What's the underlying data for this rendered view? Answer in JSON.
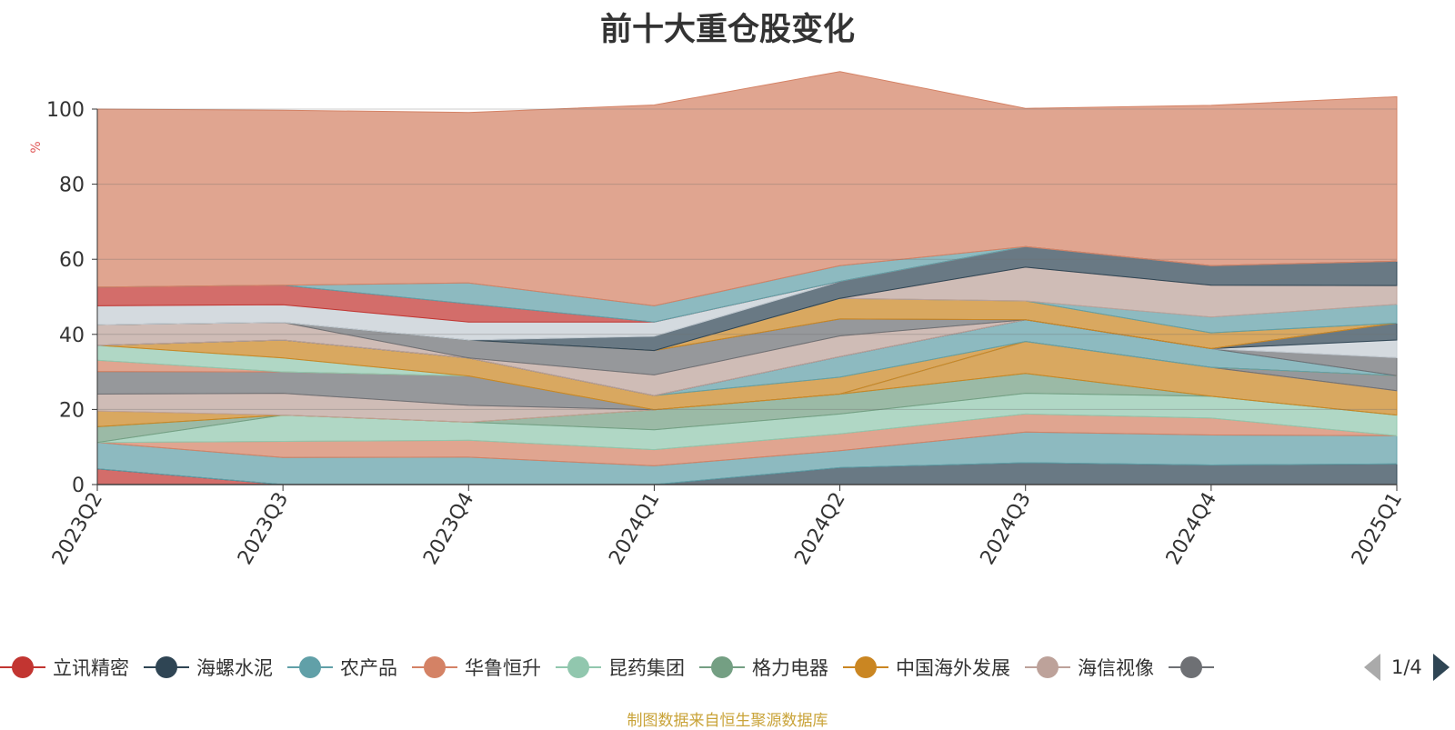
{
  "chart_data": {
    "type": "area",
    "stacked": true,
    "title": "前十大重仓股变化",
    "ylabel": "%",
    "ylim": [
      0,
      100
    ],
    "yticks": [
      0,
      20,
      40,
      60,
      80,
      100
    ],
    "grid": true,
    "legend_position": "bottom",
    "categories": [
      "2023Q2",
      "2023Q3",
      "2023Q4",
      "2024Q1",
      "2024Q2",
      "2024Q3",
      "2024Q4",
      "2025Q1"
    ],
    "series": [
      {
        "name": "立讯精密",
        "color": "#c23531",
        "values": [
          4.2,
          0,
          0,
          0,
          0,
          0,
          0,
          0
        ]
      },
      {
        "name": "海螺水泥",
        "color": "#2f4554",
        "values": [
          0,
          0,
          0,
          0,
          4.5,
          5.8,
          5.2,
          5.5
        ]
      },
      {
        "name": "农产品",
        "color": "#61a0a8",
        "values": [
          7.0,
          7.2,
          7.3,
          5.0,
          4.5,
          8.2,
          8.0,
          7.5
        ]
      },
      {
        "name": "华鲁恒升",
        "color": "#d48265",
        "values": [
          0,
          4.3,
          4.5,
          4.3,
          4.5,
          4.8,
          4.5,
          0
        ]
      },
      {
        "name": "昆药集团",
        "color": "#91c7ae",
        "values": [
          0,
          7.0,
          4.8,
          5.3,
          5.3,
          5.5,
          5.8,
          5.5
        ]
      },
      {
        "name": "格力电器",
        "color": "#749f83",
        "values": [
          4.2,
          0,
          0,
          5.3,
          5.3,
          5.3,
          0,
          0
        ]
      },
      {
        "name": "中国海外发展",
        "color": "#ca8622",
        "values": [
          4.2,
          0,
          0,
          0,
          0,
          8.5,
          7.7,
          6.5
        ]
      },
      {
        "name": "海信视像",
        "color": "#bda29a",
        "values": [
          4.5,
          5.8,
          4.5,
          0,
          0,
          0,
          0,
          0
        ]
      },
      {
        "name": "",
        "color": "#6e7074",
        "values": [
          6.0,
          5.7,
          7.8,
          0,
          0,
          0,
          0,
          4.0
        ]
      },
      {
        "name": "",
        "color": "#d48265",
        "values": [
          3.0,
          0,
          0,
          0,
          0,
          0,
          0,
          0
        ]
      },
      {
        "name": "",
        "color": "#91c7ae",
        "values": [
          4.0,
          3.7,
          0,
          0,
          0,
          0,
          0,
          0
        ]
      },
      {
        "name": "",
        "color": "#ca8622",
        "values": [
          0,
          4.8,
          4.8,
          3.8,
          4.5,
          0,
          0,
          0
        ]
      },
      {
        "name": "",
        "color": "#61a0a8",
        "values": [
          0,
          0,
          0,
          0,
          5.5,
          5.8,
          5.0,
          0
        ]
      },
      {
        "name": "",
        "color": "#6e7074",
        "values": [
          0,
          0,
          0,
          0,
          0,
          0,
          0,
          4.8
        ]
      },
      {
        "name": "",
        "color": "#c4ccd3",
        "values": [
          0,
          0,
          0,
          0,
          0,
          0,
          0,
          4.7
        ]
      },
      {
        "name": "",
        "color": "#2f4554",
        "values": [
          0,
          0,
          0,
          0,
          0,
          0,
          0,
          4.5
        ]
      },
      {
        "name": "",
        "color": "#bda29a",
        "values": [
          5.5,
          4.7,
          0,
          5.5,
          5.5,
          0,
          0,
          0
        ]
      },
      {
        "name": "",
        "color": "#6e7074",
        "values": [
          0,
          0,
          4.8,
          6.5,
          4.5,
          0,
          0,
          0
        ]
      },
      {
        "name": "",
        "color": "#ca8622",
        "values": [
          0,
          0,
          0,
          0,
          5.5,
          5.0,
          4.2,
          0
        ]
      },
      {
        "name": "",
        "color": "#61a0a8",
        "values": [
          0,
          0,
          0,
          0,
          0,
          0,
          4.2,
          5.0
        ]
      },
      {
        "name": "",
        "color": "#bda29a",
        "values": [
          0,
          0,
          0,
          0,
          0,
          9.0,
          8.5,
          5.0
        ]
      },
      {
        "name": "",
        "color": "#2f4554",
        "values": [
          0,
          0,
          0,
          3.8,
          4.5,
          5.5,
          5.2,
          6.5
        ]
      },
      {
        "name": "",
        "color": "#c4ccd3",
        "values": [
          5.0,
          4.7,
          4.8,
          3.8,
          0,
          0,
          0,
          0
        ]
      },
      {
        "name": "",
        "color": "#c23531",
        "values": [
          5.0,
          5.2,
          4.8,
          0,
          0,
          0,
          0,
          0
        ]
      },
      {
        "name": "",
        "color": "#61a0a8",
        "values": [
          0,
          0,
          5.6,
          4.3,
          4.2,
          0,
          0,
          0
        ]
      },
      {
        "name": "",
        "color": "#d48265",
        "values": [
          47.4,
          46.6,
          45.4,
          53.5,
          51.7,
          36.8,
          42.7,
          43.8
        ]
      }
    ]
  },
  "legend": {
    "items": [
      "立讯精密",
      "海螺水泥",
      "农产品",
      "华鲁恒升",
      "昆药集团",
      "格力电器",
      "中国海外发展",
      "海信视像",
      ""
    ],
    "colors": [
      "#c23531",
      "#2f4554",
      "#61a0a8",
      "#d48265",
      "#91c7ae",
      "#749f83",
      "#ca8622",
      "#bda29a",
      "#6e7074"
    ],
    "page": "1/4"
  },
  "footer": "制图数据来自恒生聚源数据库"
}
